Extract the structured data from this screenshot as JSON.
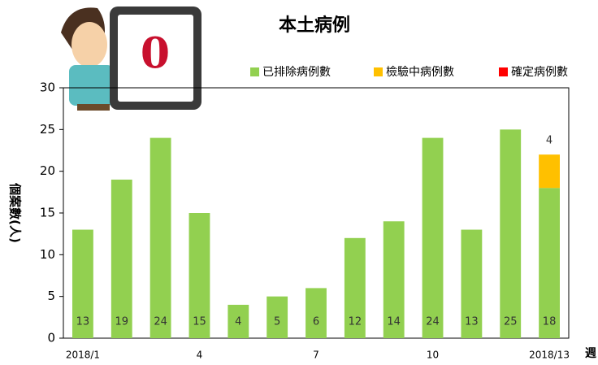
{
  "chart_data": {
    "type": "stacked_bar",
    "title": "本土病例",
    "badge_text": "0",
    "x_label": "週",
    "y_label": "個案數(人)",
    "categories": [
      "2018/1",
      null,
      null,
      "4",
      null,
      null,
      "7",
      null,
      null,
      "10",
      null,
      null,
      "2018/13"
    ],
    "series": [
      {
        "name": "已排除病例數",
        "color": "#92d050",
        "values": [
          13,
          19,
          24,
          15,
          4,
          5,
          6,
          12,
          14,
          24,
          13,
          25,
          18
        ]
      },
      {
        "name": "檢驗中病例數",
        "color": "#ffc000",
        "values": [
          0,
          0,
          0,
          0,
          0,
          0,
          0,
          0,
          0,
          0,
          0,
          0,
          4
        ]
      },
      {
        "name": "確定病例數",
        "color": "#ff0000",
        "values": [
          0,
          0,
          0,
          0,
          0,
          0,
          0,
          0,
          0,
          0,
          0,
          0,
          0
        ]
      }
    ],
    "ylim": [
      0,
      30
    ],
    "yticks": [
      0,
      5,
      10,
      15,
      20,
      25,
      30
    ]
  }
}
